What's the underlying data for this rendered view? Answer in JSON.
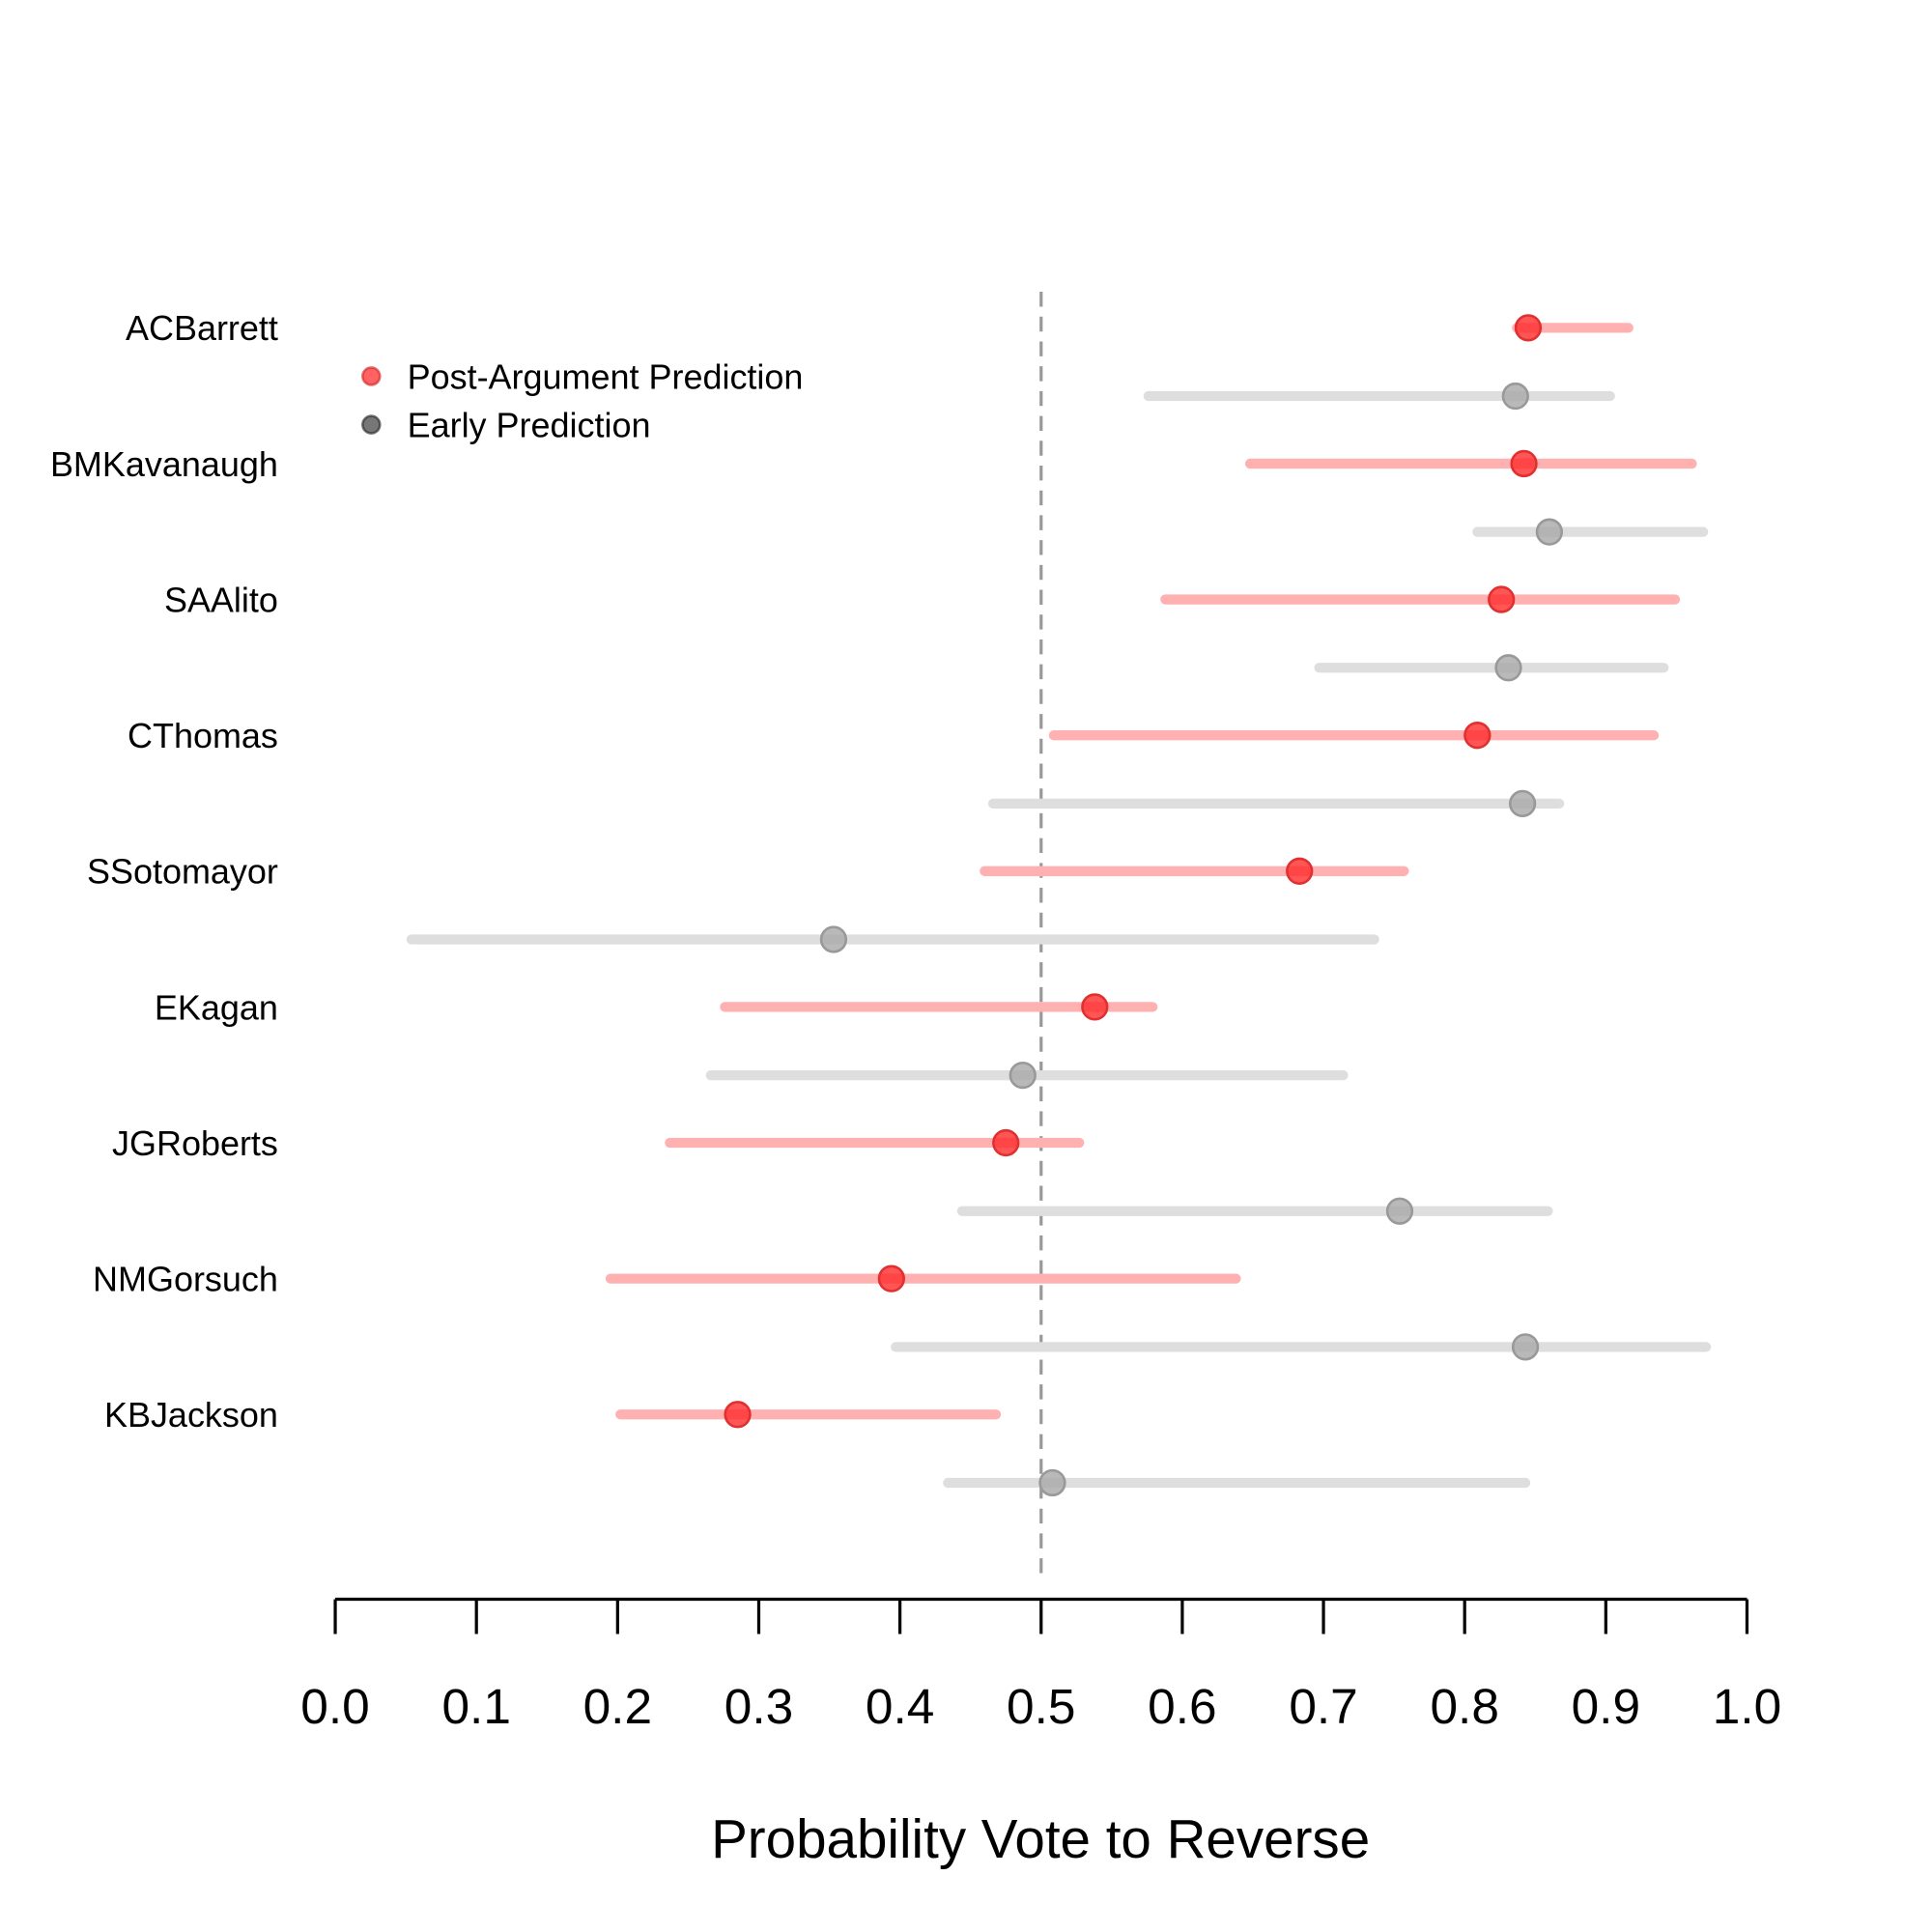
{
  "chart_data": {
    "type": "scatter",
    "subtype": "dot-and-interval",
    "title": "",
    "xlabel": "Probability Vote to Reverse",
    "ylabel": "",
    "xlim": [
      0,
      1
    ],
    "xticks": [
      "0.0",
      "0.1",
      "0.2",
      "0.3",
      "0.4",
      "0.5",
      "0.6",
      "0.7",
      "0.8",
      "0.9",
      "1.0"
    ],
    "reference_line": 0.5,
    "grid": false,
    "legend_placement": "top-left",
    "legend": [
      {
        "label": "Post-Argument Prediction",
        "color": "#ff0000"
      },
      {
        "label": "Early Prediction",
        "color": "#555555"
      }
    ],
    "colors": {
      "post_point": "#ff3b3b",
      "post_interval": "#ffb0b0",
      "early_point": "#b4b4b4",
      "early_interval": "#dedede",
      "reference": "#999999"
    },
    "justices": [
      {
        "name": "ACBarrett",
        "post": {
          "est": 0.845,
          "lo": 0.837,
          "hi": 0.916
        },
        "early": {
          "est": 0.836,
          "lo": 0.576,
          "hi": 0.903
        }
      },
      {
        "name": "BMKavanaugh",
        "post": {
          "est": 0.842,
          "lo": 0.648,
          "hi": 0.961
        },
        "early": {
          "est": 0.86,
          "lo": 0.809,
          "hi": 0.969
        }
      },
      {
        "name": "SAAlito",
        "post": {
          "est": 0.826,
          "lo": 0.588,
          "hi": 0.949
        },
        "early": {
          "est": 0.831,
          "lo": 0.697,
          "hi": 0.941
        }
      },
      {
        "name": "CThomas",
        "post": {
          "est": 0.809,
          "lo": 0.509,
          "hi": 0.934
        },
        "early": {
          "est": 0.841,
          "lo": 0.466,
          "hi": 0.867
        }
      },
      {
        "name": "SSotomayor",
        "post": {
          "est": 0.683,
          "lo": 0.46,
          "hi": 0.757
        },
        "early": {
          "est": 0.353,
          "lo": 0.054,
          "hi": 0.736
        }
      },
      {
        "name": "EKagan",
        "post": {
          "est": 0.538,
          "lo": 0.276,
          "hi": 0.579
        },
        "early": {
          "est": 0.487,
          "lo": 0.266,
          "hi": 0.714
        }
      },
      {
        "name": "JGRoberts",
        "post": {
          "est": 0.475,
          "lo": 0.237,
          "hi": 0.527
        },
        "early": {
          "est": 0.754,
          "lo": 0.444,
          "hi": 0.859
        }
      },
      {
        "name": "NMGorsuch",
        "post": {
          "est": 0.394,
          "lo": 0.195,
          "hi": 0.638
        },
        "early": {
          "est": 0.843,
          "lo": 0.397,
          "hi": 0.971
        }
      },
      {
        "name": "KBJackson",
        "post": {
          "est": 0.285,
          "lo": 0.202,
          "hi": 0.468
        },
        "early": {
          "est": 0.508,
          "lo": 0.434,
          "hi": 0.843
        }
      }
    ]
  }
}
